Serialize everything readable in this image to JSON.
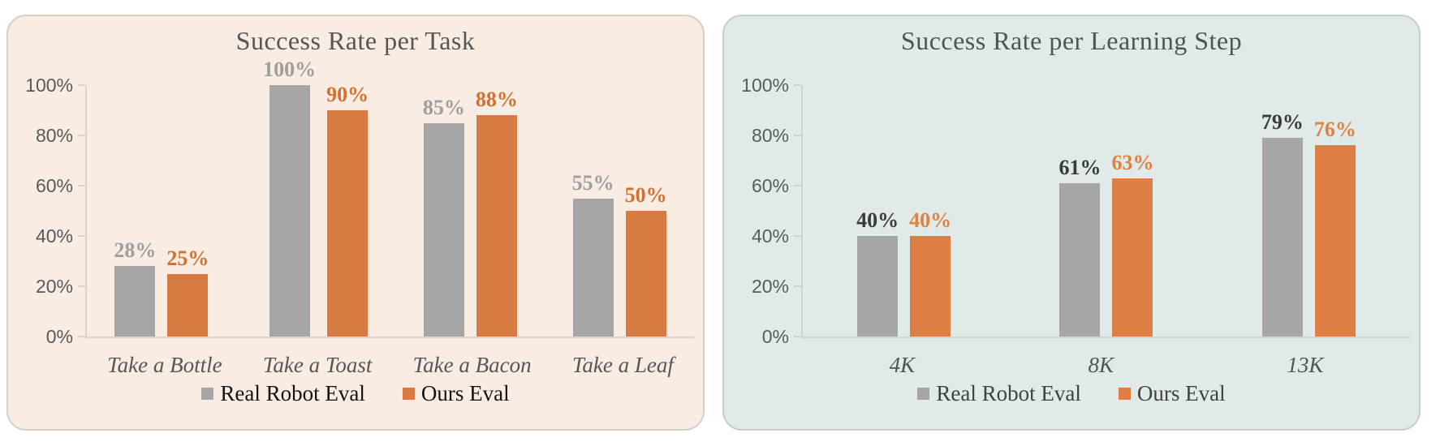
{
  "chart_data": [
    {
      "type": "bar",
      "title": "Success Rate per Task",
      "categories": [
        "Take a Bottle",
        "Take a Toast",
        "Take a Bacon",
        "Take a Leaf"
      ],
      "series": [
        {
          "name": "Real Robot Eval",
          "values": [
            28,
            100,
            85,
            55
          ],
          "color": "#a6a6a6",
          "label_color": "#9e9e9e"
        },
        {
          "name": "Ours Eval",
          "values": [
            25,
            90,
            88,
            50
          ],
          "color": "#d87b42",
          "label_color": "#d2702f"
        }
      ],
      "value_suffix": "%",
      "y_tick_labels": [
        "0%",
        "20%",
        "40%",
        "60%",
        "80%",
        "100%"
      ],
      "ylim": [
        0,
        100
      ],
      "grid": false,
      "legend_position": "bottom",
      "panel_bg": "#f9ece2",
      "panel_border": "#d5cfc7",
      "axis_color": "#ddd3c8",
      "title_color": "#565656",
      "tick_label_color": "#595959",
      "category_label_color": "#565656",
      "legend_text_color": "#141414"
    },
    {
      "type": "bar",
      "title": "Success Rate per Learning Step",
      "categories": [
        "4K",
        "8K",
        "13K"
      ],
      "series": [
        {
          "name": "Real Robot Eval",
          "values": [
            40,
            61,
            79
          ],
          "color": "#a6a6a6",
          "label_color": "#3b3b3b"
        },
        {
          "name": "Ours Eval",
          "values": [
            40,
            63,
            76
          ],
          "color": "#dd7e42",
          "label_color": "#e0823f"
        }
      ],
      "value_suffix": "%",
      "y_tick_labels": [
        "0%",
        "20%",
        "40%",
        "60%",
        "80%",
        "100%"
      ],
      "ylim": [
        0,
        100
      ],
      "grid": false,
      "legend_position": "bottom",
      "panel_bg": "#e0eae9",
      "panel_border": "#c6cfce",
      "axis_color": "#c9d6d4",
      "title_color": "#4f5354",
      "tick_label_color": "#585c5c",
      "category_label_color": "#4f5354",
      "legend_text_color": "#3f4243"
    }
  ]
}
